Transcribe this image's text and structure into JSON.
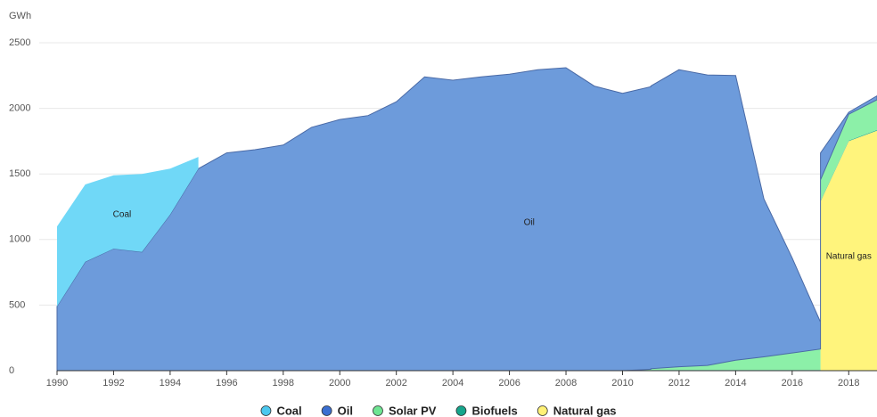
{
  "chart_data": {
    "type": "area",
    "stacked": true,
    "y_unit": "GWh",
    "x": [
      1990,
      1991,
      1992,
      1993,
      1994,
      1995,
      1996,
      1997,
      1998,
      1999,
      2000,
      2001,
      2002,
      2003,
      2004,
      2005,
      2006,
      2007,
      2008,
      2009,
      2010,
      2011,
      2012,
      2013,
      2014,
      2015,
      2016,
      2017,
      2018,
      2019
    ],
    "series": [
      {
        "name": "Coal",
        "color": "#70d8f7",
        "marker_color": "#4cc8ef",
        "values": [
          610,
          590,
          560,
          595,
          350,
          90,
          null,
          null,
          null,
          null,
          null,
          null,
          null,
          null,
          null,
          null,
          null,
          null,
          null,
          null,
          null,
          null,
          null,
          null,
          null,
          null,
          null,
          null,
          null,
          null
        ]
      },
      {
        "name": "Oil",
        "color": "#6d9bdb",
        "marker_color": "#3b6fd1",
        "values": [
          490,
          830,
          930,
          905,
          1190,
          1540,
          1660,
          1685,
          1720,
          1855,
          1915,
          1945,
          2050,
          2240,
          2215,
          2240,
          2260,
          2295,
          2310,
          2170,
          2115,
          2155,
          2265,
          2215,
          2170,
          1205,
          725,
          205,
          15,
          30
        ]
      },
      {
        "name": "Solar PV",
        "color": "#8cf0a8",
        "marker_color": "#6fe593",
        "values": [
          null,
          null,
          null,
          null,
          null,
          null,
          null,
          null,
          null,
          null,
          null,
          null,
          null,
          null,
          null,
          null,
          null,
          null,
          null,
          null,
          0,
          10,
          25,
          35,
          75,
          100,
          130,
          160,
          200,
          230
        ]
      },
      {
        "name": "Biofuels",
        "color": "#1aa68f",
        "marker_color": "#17a58c",
        "values": [
          null,
          null,
          null,
          null,
          null,
          null,
          null,
          null,
          null,
          null,
          null,
          null,
          null,
          null,
          null,
          null,
          null,
          null,
          null,
          null,
          null,
          5,
          5,
          5,
          5,
          5,
          5,
          5,
          5,
          5
        ]
      },
      {
        "name": "Natural gas",
        "color": "#fff47c",
        "marker_color": "#fff176",
        "values": [
          null,
          null,
          null,
          null,
          null,
          null,
          null,
          null,
          null,
          null,
          null,
          null,
          null,
          null,
          null,
          null,
          null,
          null,
          null,
          null,
          null,
          null,
          null,
          null,
          null,
          null,
          null,
          1290,
          1750,
          1830
        ]
      }
    ],
    "annotations": [
      {
        "text": "Coal",
        "x": 1992.3,
        "y": 1190
      },
      {
        "text": "Oil",
        "x": 2006.7,
        "y": 1130
      },
      {
        "text": "Natural gas",
        "x": 2018,
        "y": 870
      }
    ],
    "xlim": [
      1990,
      2019
    ],
    "xticks": [
      1990,
      1992,
      1994,
      1996,
      1998,
      2000,
      2002,
      2004,
      2006,
      2008,
      2010,
      2012,
      2014,
      2016,
      2018
    ],
    "ylim": [
      0,
      2500
    ],
    "yticks": [
      0,
      500,
      1000,
      1500,
      2000,
      2500
    ],
    "grid": true,
    "legend": "bottom"
  }
}
